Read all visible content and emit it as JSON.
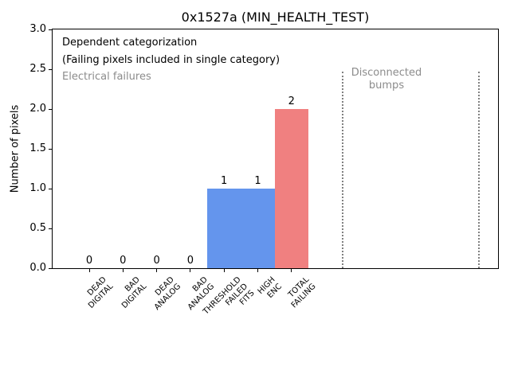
{
  "chart_data": {
    "type": "bar",
    "title": "0x1527a (MIN_HEALTH_TEST)",
    "ylabel": "Number of pixels",
    "xlabel": "",
    "ylim": [
      0.0,
      3.0
    ],
    "ytick_labels": [
      "0.0",
      "0.5",
      "1.0",
      "1.5",
      "2.0",
      "2.5",
      "3.0"
    ],
    "grid": false,
    "legend": false,
    "categories": [
      "DEAD\nDIGITAL",
      "BAD\nDIGITAL",
      "DEAD\nANALOG",
      "BAD\nANALOG",
      "THRESHOLD\nFAILED\nFITS",
      "HIGH\nENC",
      "TOTAL\nFAILING"
    ],
    "values": [
      0,
      0,
      0,
      0,
      1,
      1,
      2
    ],
    "bar_labels": [
      "0",
      "0",
      "0",
      "0",
      "1",
      "1",
      "2"
    ],
    "bar_colors": [
      "#6495ed",
      "#6495ed",
      "#6495ed",
      "#6495ed",
      "#6495ed",
      "#6495ed",
      "#f08080"
    ],
    "annotations": {
      "dependent": "Dependent categorization\n(Failing pixels included in single category)",
      "electrical": "Electrical failures",
      "disconnected": "Disconnected\nbumps"
    },
    "colors": {
      "electrical_bar_blue": "#6495ed",
      "total_failing_bar_red": "#f08080",
      "annotation_gray": "#8c8c8c",
      "separator_gray": "#808080"
    },
    "region_separators": {
      "style": "dotted",
      "count": 2,
      "label": "Disconnected\nbumps"
    }
  }
}
